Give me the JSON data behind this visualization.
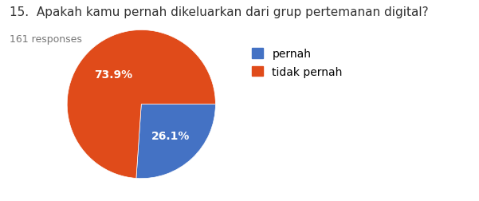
{
  "title": "15.  Apakah kamu pernah dikeluarkan dari grup pertemanan digital?",
  "responses_label": "161 responses",
  "labels": [
    "pernah",
    "tidak pernah"
  ],
  "values": [
    26.1,
    73.9
  ],
  "colors": [
    "#4472c4",
    "#e04b1a"
  ],
  "pct_labels": [
    "26.1%",
    "73.9%"
  ],
  "title_fontsize": 11,
  "responses_fontsize": 9,
  "legend_fontsize": 10,
  "background_color": "#ffffff",
  "startangle": 0
}
